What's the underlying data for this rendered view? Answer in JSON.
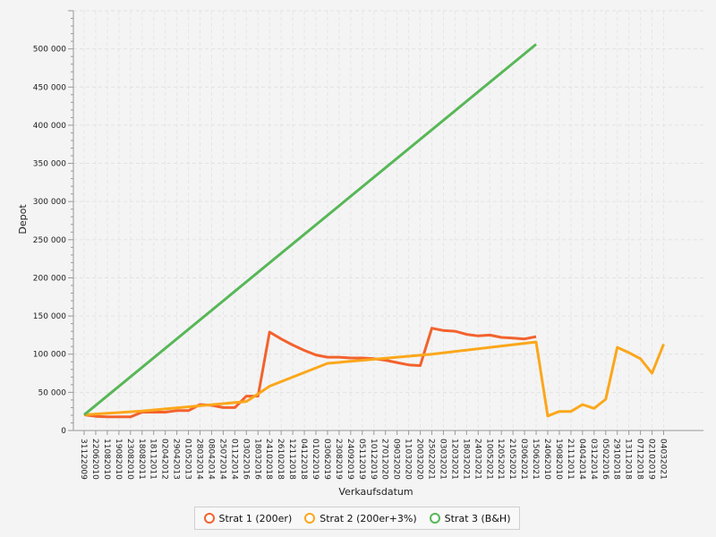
{
  "chart_data": {
    "type": "line",
    "title": "",
    "xlabel": "Verkaufsdatum",
    "ylabel": "Depot",
    "ylim": [
      0,
      550000
    ],
    "yticks": [
      0,
      50000,
      100000,
      150000,
      200000,
      250000,
      300000,
      350000,
      400000,
      450000,
      500000
    ],
    "ytick_labels": [
      "0",
      "50 000",
      "100 000",
      "150 000",
      "200 000",
      "250 000",
      "300 000",
      "350 000",
      "400 000",
      "450 000",
      "500 000"
    ],
    "categories": [
      "31122009",
      "22062010",
      "11082010",
      "19082010",
      "23082010",
      "18082011",
      "18112011",
      "02042012",
      "29042013",
      "01052013",
      "28032014",
      "08042014",
      "25072014",
      "01122014",
      "03022016",
      "18032016",
      "24102018",
      "26102018",
      "12112018",
      "04122018",
      "01022019",
      "03062019",
      "23082019",
      "24092019",
      "05112019",
      "10122019",
      "27012020",
      "09032020",
      "11032020",
      "20032020",
      "25022021",
      "03032021",
      "12032021",
      "18032021",
      "24032021",
      "10052021",
      "12052021",
      "21052021",
      "03062021",
      "15062021",
      "24062010",
      "19082010",
      "21112011",
      "04042014",
      "03122014",
      "05022016",
      "29102018",
      "13112018",
      "07122018",
      "02102019",
      "04032021"
    ],
    "series": [
      {
        "name": "Strat 1 (200er)",
        "color": "#f3622d",
        "values": [
          20500,
          18500,
          18000,
          18000,
          17800,
          24000,
          24000,
          24000,
          26000,
          26000,
          34000,
          33000,
          30000,
          30000,
          45000,
          45000,
          129000,
          120000,
          112000,
          105000,
          99000,
          96000,
          96000,
          95000,
          95000,
          94000,
          92000,
          89000,
          86000,
          85000,
          134000,
          131000,
          130000,
          126000,
          124000,
          125000,
          122000,
          121000,
          120000,
          123000,
          null,
          null,
          null,
          null,
          null,
          null,
          null,
          null,
          null,
          null,
          null
        ]
      },
      {
        "name": "Strat 2 (200er+3%)",
        "color": "#fba71b",
        "values": [
          20500,
          null,
          null,
          null,
          null,
          25500,
          null,
          null,
          null,
          null,
          null,
          null,
          null,
          null,
          38000,
          48000,
          58000,
          null,
          null,
          null,
          null,
          88000,
          null,
          null,
          null,
          null,
          null,
          null,
          null,
          null,
          100000,
          null,
          null,
          null,
          null,
          null,
          null,
          null,
          null,
          116000,
          19000,
          25000,
          25000,
          34000,
          29000,
          41000,
          109000,
          102000,
          94000,
          75000,
          113000
        ]
      },
      {
        "name": "Strat 3 (B&H)",
        "color": "#57b757",
        "values": [
          20500,
          null,
          null,
          null,
          null,
          null,
          null,
          null,
          null,
          null,
          null,
          null,
          null,
          null,
          null,
          null,
          null,
          null,
          null,
          null,
          null,
          null,
          null,
          null,
          null,
          null,
          null,
          null,
          null,
          null,
          null,
          null,
          null,
          null,
          null,
          null,
          null,
          null,
          null,
          506000,
          null,
          null,
          null,
          null,
          null,
          null,
          null,
          null,
          null,
          null,
          null
        ]
      }
    ],
    "grid": true,
    "legend_position": "bottom"
  }
}
